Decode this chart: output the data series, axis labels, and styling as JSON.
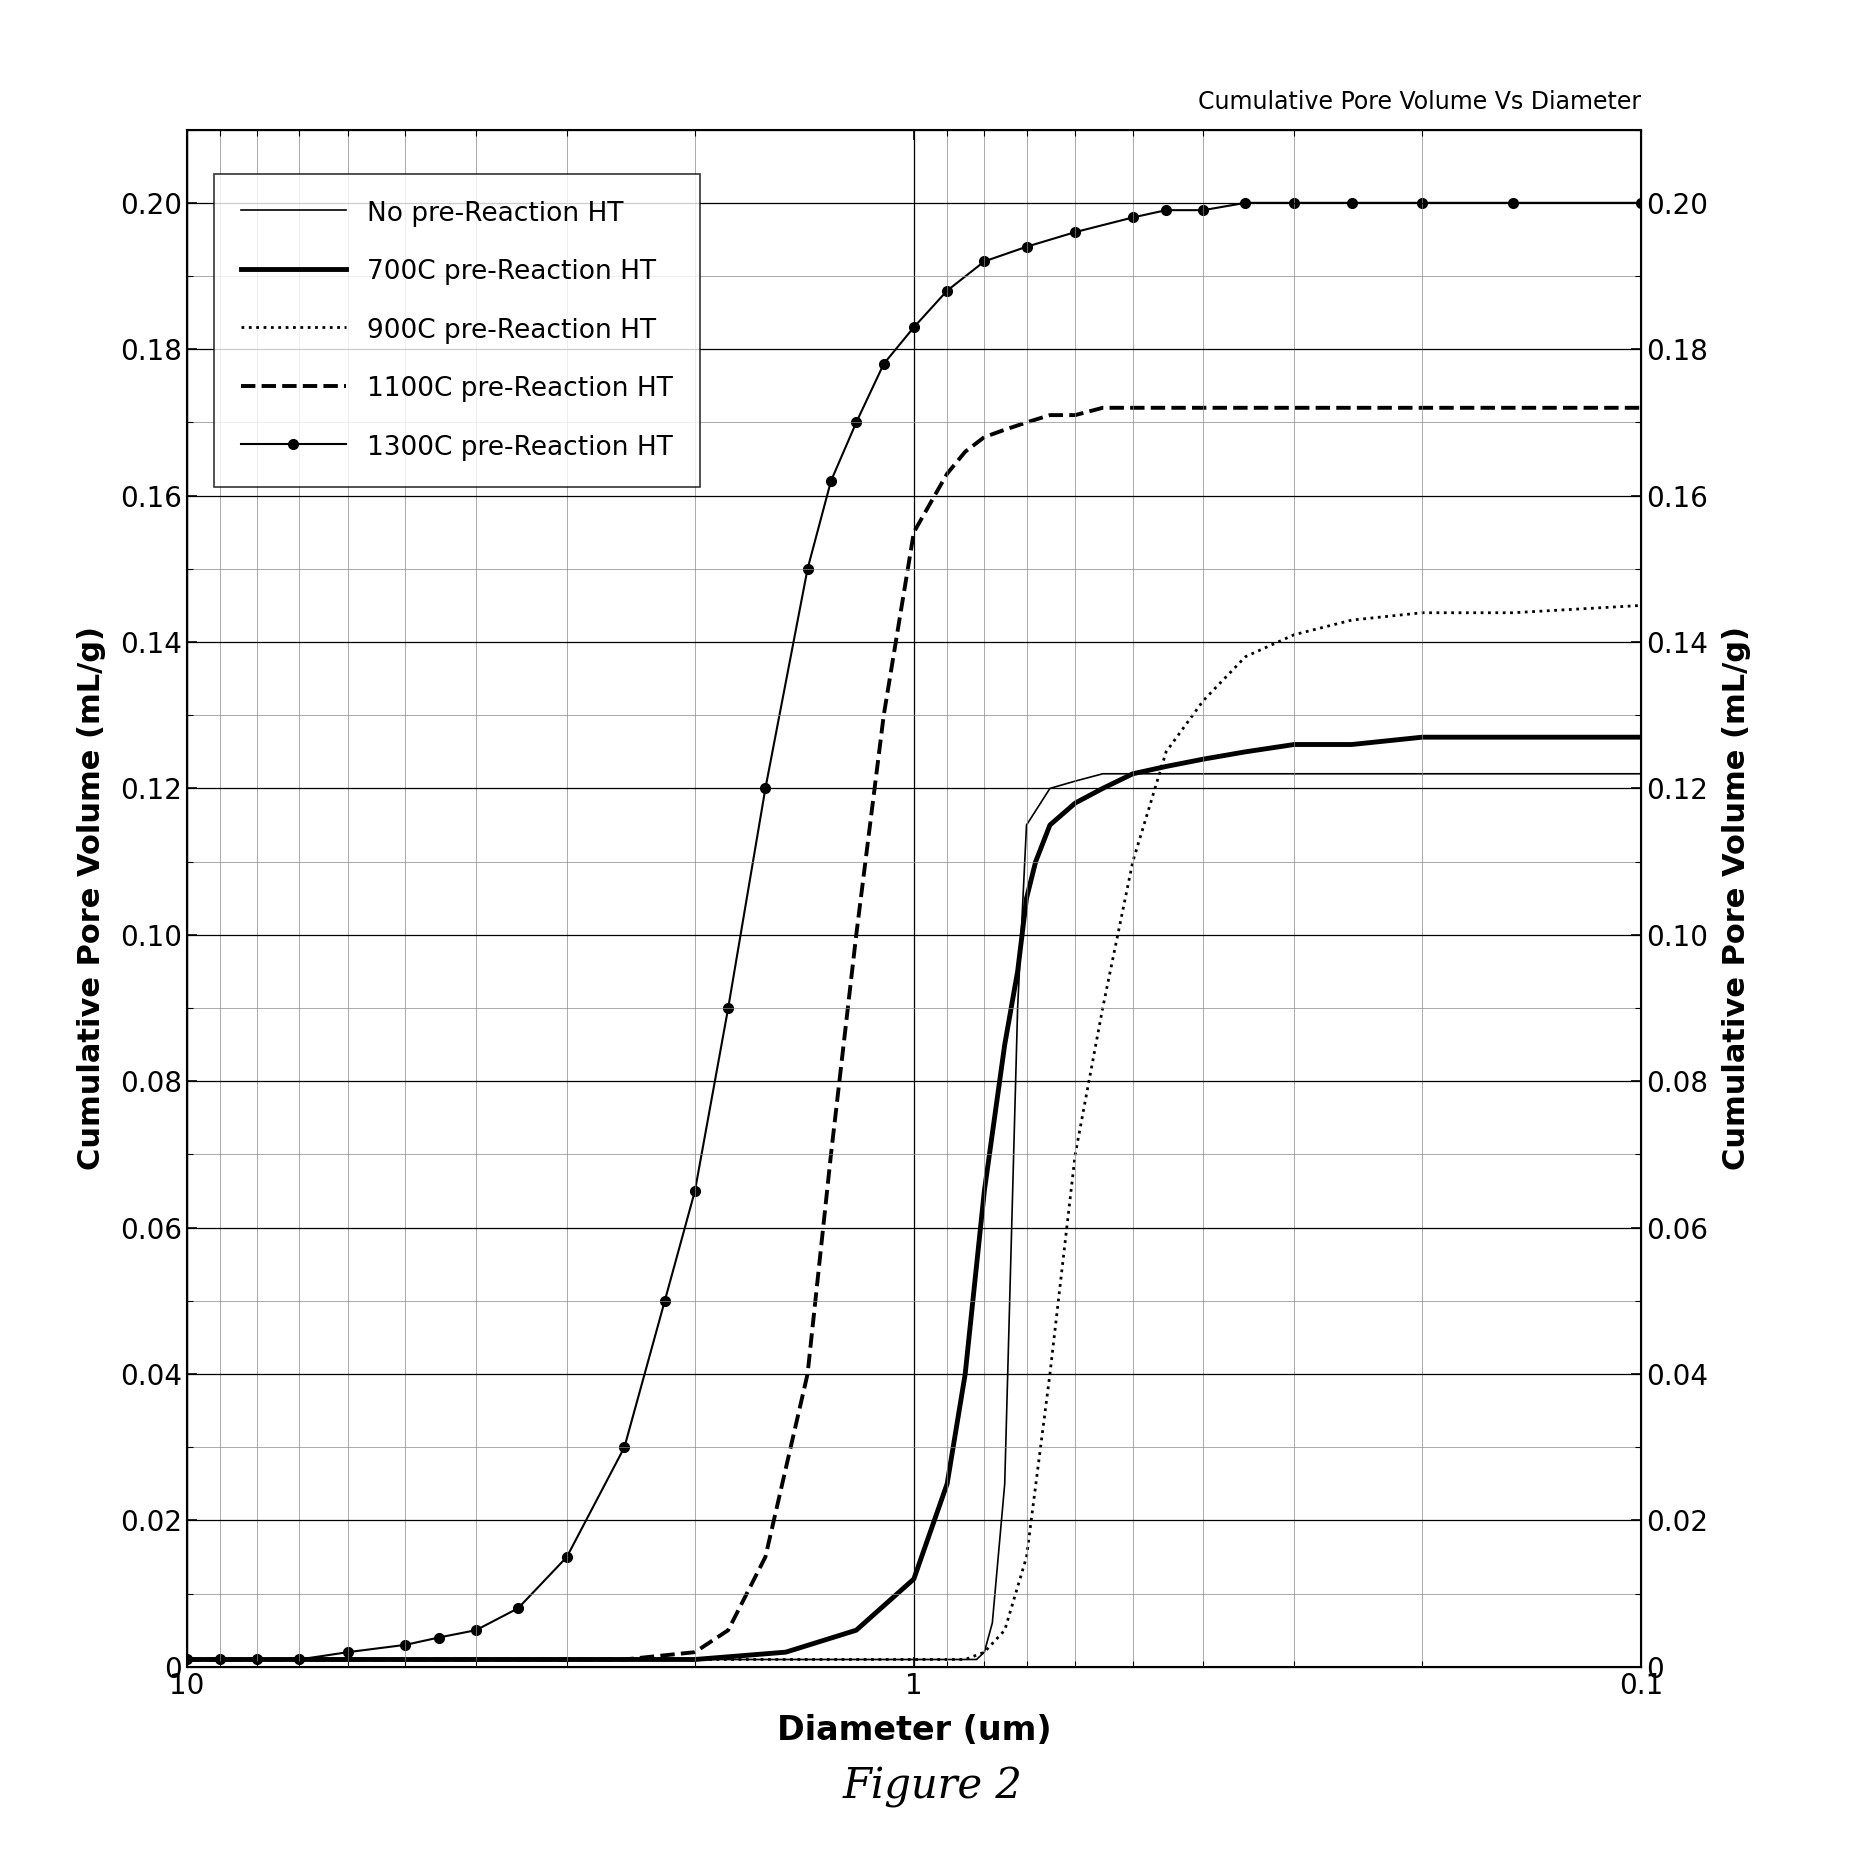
{
  "title": "Cumulative Pore Volume Vs Diameter",
  "xlabel": "Diameter (um)",
  "ylabel": "Cumulative Pore Volume (mL/g)",
  "figure_caption": "Figure 2",
  "xlim_left": 10,
  "xlim_right": 0.1,
  "ylim": [
    0,
    0.21
  ],
  "yticks": [
    0,
    0.02,
    0.04,
    0.06,
    0.08,
    0.1,
    0.12,
    0.14,
    0.16,
    0.18,
    0.2
  ],
  "series": [
    {
      "label": "No pre-Reaction HT",
      "linestyle": "solid",
      "linewidth": 1.2,
      "color": "#000000",
      "marker": null,
      "markersize": 0,
      "x": [
        10,
        8,
        6,
        5,
        4,
        3,
        2,
        1.5,
        1.2,
        1.1,
        1.0,
        0.95,
        0.9,
        0.85,
        0.82,
        0.8,
        0.78,
        0.75,
        0.72,
        0.7,
        0.65,
        0.6,
        0.55,
        0.5,
        0.45,
        0.4,
        0.35,
        0.3,
        0.25,
        0.2,
        0.15,
        0.1
      ],
      "y": [
        0.001,
        0.001,
        0.001,
        0.001,
        0.001,
        0.001,
        0.001,
        0.001,
        0.001,
        0.001,
        0.001,
        0.001,
        0.001,
        0.001,
        0.001,
        0.002,
        0.006,
        0.025,
        0.09,
        0.115,
        0.12,
        0.121,
        0.122,
        0.122,
        0.122,
        0.122,
        0.122,
        0.122,
        0.122,
        0.122,
        0.122,
        0.122
      ]
    },
    {
      "label": "700C pre-Reaction HT",
      "linestyle": "solid",
      "linewidth": 3.5,
      "color": "#000000",
      "marker": null,
      "markersize": 0,
      "x": [
        10,
        8,
        6,
        5,
        4,
        3,
        2,
        1.5,
        1.2,
        1.0,
        0.9,
        0.85,
        0.8,
        0.75,
        0.72,
        0.7,
        0.68,
        0.65,
        0.6,
        0.55,
        0.5,
        0.45,
        0.4,
        0.35,
        0.3,
        0.25,
        0.2,
        0.15,
        0.1
      ],
      "y": [
        0.001,
        0.001,
        0.001,
        0.001,
        0.001,
        0.001,
        0.001,
        0.002,
        0.005,
        0.012,
        0.025,
        0.04,
        0.065,
        0.085,
        0.095,
        0.105,
        0.11,
        0.115,
        0.118,
        0.12,
        0.122,
        0.123,
        0.124,
        0.125,
        0.126,
        0.126,
        0.127,
        0.127,
        0.127
      ]
    },
    {
      "label": "900C pre-Reaction HT",
      "linestyle": "dotted",
      "linewidth": 2.0,
      "color": "#000000",
      "marker": null,
      "markersize": 0,
      "x": [
        10,
        8,
        6,
        5,
        4,
        3,
        2,
        1.5,
        1.2,
        1.0,
        0.9,
        0.85,
        0.8,
        0.75,
        0.7,
        0.65,
        0.6,
        0.55,
        0.5,
        0.45,
        0.4,
        0.35,
        0.3,
        0.25,
        0.2,
        0.15,
        0.1
      ],
      "y": [
        0.001,
        0.001,
        0.001,
        0.001,
        0.001,
        0.001,
        0.001,
        0.001,
        0.001,
        0.001,
        0.001,
        0.001,
        0.002,
        0.005,
        0.015,
        0.04,
        0.07,
        0.09,
        0.11,
        0.125,
        0.132,
        0.138,
        0.141,
        0.143,
        0.144,
        0.144,
        0.145
      ]
    },
    {
      "label": "1100C pre-Reaction HT",
      "linestyle": "dashed",
      "linewidth": 2.8,
      "color": "#000000",
      "marker": null,
      "markersize": 0,
      "x": [
        10,
        8,
        6,
        5,
        4,
        3,
        2.5,
        2.0,
        1.8,
        1.6,
        1.4,
        1.3,
        1.2,
        1.1,
        1.0,
        0.9,
        0.85,
        0.8,
        0.75,
        0.7,
        0.65,
        0.6,
        0.55,
        0.5,
        0.45,
        0.4,
        0.35,
        0.3,
        0.25,
        0.2,
        0.15,
        0.1
      ],
      "y": [
        0.001,
        0.001,
        0.001,
        0.001,
        0.001,
        0.001,
        0.001,
        0.002,
        0.005,
        0.015,
        0.04,
        0.07,
        0.1,
        0.13,
        0.155,
        0.163,
        0.166,
        0.168,
        0.169,
        0.17,
        0.171,
        0.171,
        0.172,
        0.172,
        0.172,
        0.172,
        0.172,
        0.172,
        0.172,
        0.172,
        0.172,
        0.172
      ]
    },
    {
      "label": "1300C pre-Reaction HT",
      "linestyle": "solid",
      "linewidth": 1.5,
      "color": "#000000",
      "marker": "o",
      "markersize": 7,
      "x": [
        10,
        9,
        8,
        7,
        6,
        5,
        4.5,
        4,
        3.5,
        3,
        2.5,
        2.2,
        2.0,
        1.8,
        1.6,
        1.4,
        1.3,
        1.2,
        1.1,
        1.0,
        0.9,
        0.8,
        0.7,
        0.6,
        0.5,
        0.45,
        0.4,
        0.35,
        0.3,
        0.25,
        0.2,
        0.15,
        0.1
      ],
      "y": [
        0.001,
        0.001,
        0.001,
        0.001,
        0.002,
        0.003,
        0.004,
        0.005,
        0.008,
        0.015,
        0.03,
        0.05,
        0.065,
        0.09,
        0.12,
        0.15,
        0.162,
        0.17,
        0.178,
        0.183,
        0.188,
        0.192,
        0.194,
        0.196,
        0.198,
        0.199,
        0.199,
        0.2,
        0.2,
        0.2,
        0.2,
        0.2,
        0.2
      ]
    }
  ]
}
